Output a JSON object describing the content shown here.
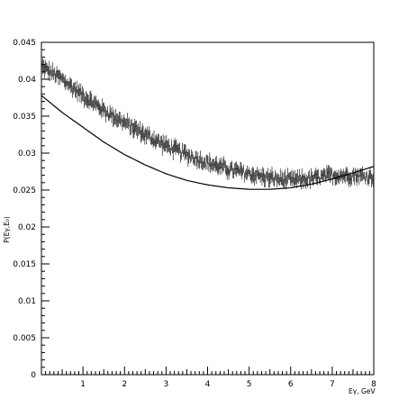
{
  "chart_data": {
    "type": "line",
    "xlabel": "Eγ, GeV",
    "ylabel": "P(Eγ,E₀)",
    "xlim": [
      0,
      8
    ],
    "ylim": [
      0,
      0.045
    ],
    "x_ticks": [
      "1",
      "2",
      "3",
      "4",
      "5",
      "6",
      "7",
      "8"
    ],
    "y_ticks": [
      "0",
      "0.005",
      "0.01",
      "0.015",
      "0.02",
      "0.025",
      "0.03",
      "0.035",
      "0.04",
      "0.045"
    ],
    "grid": false,
    "series": [
      {
        "style": "histogram-with-error-bars",
        "x": [
          0,
          0.5,
          1,
          1.5,
          2,
          2.5,
          3,
          3.5,
          4,
          4.5,
          5,
          5.5,
          6,
          6.5,
          7,
          7.5,
          8
        ],
        "values": [
          0.0417,
          0.04,
          0.0378,
          0.0358,
          0.0341,
          0.0325,
          0.031,
          0.0298,
          0.0287,
          0.0278,
          0.0272,
          0.0266,
          0.0263,
          0.0265,
          0.027,
          0.027,
          0.0268
        ],
        "error": 0.0009
      },
      {
        "style": "smooth-curve",
        "x": [
          0,
          0.5,
          1,
          1.5,
          2,
          2.5,
          3,
          3.5,
          4,
          4.5,
          5,
          5.5,
          6,
          6.5,
          7,
          7.5,
          8
        ],
        "values": [
          0.0378,
          0.0355,
          0.0335,
          0.0315,
          0.0298,
          0.0284,
          0.0272,
          0.0263,
          0.0257,
          0.0253,
          0.0251,
          0.0251,
          0.0253,
          0.0258,
          0.0265,
          0.0273,
          0.0282
        ]
      }
    ]
  }
}
